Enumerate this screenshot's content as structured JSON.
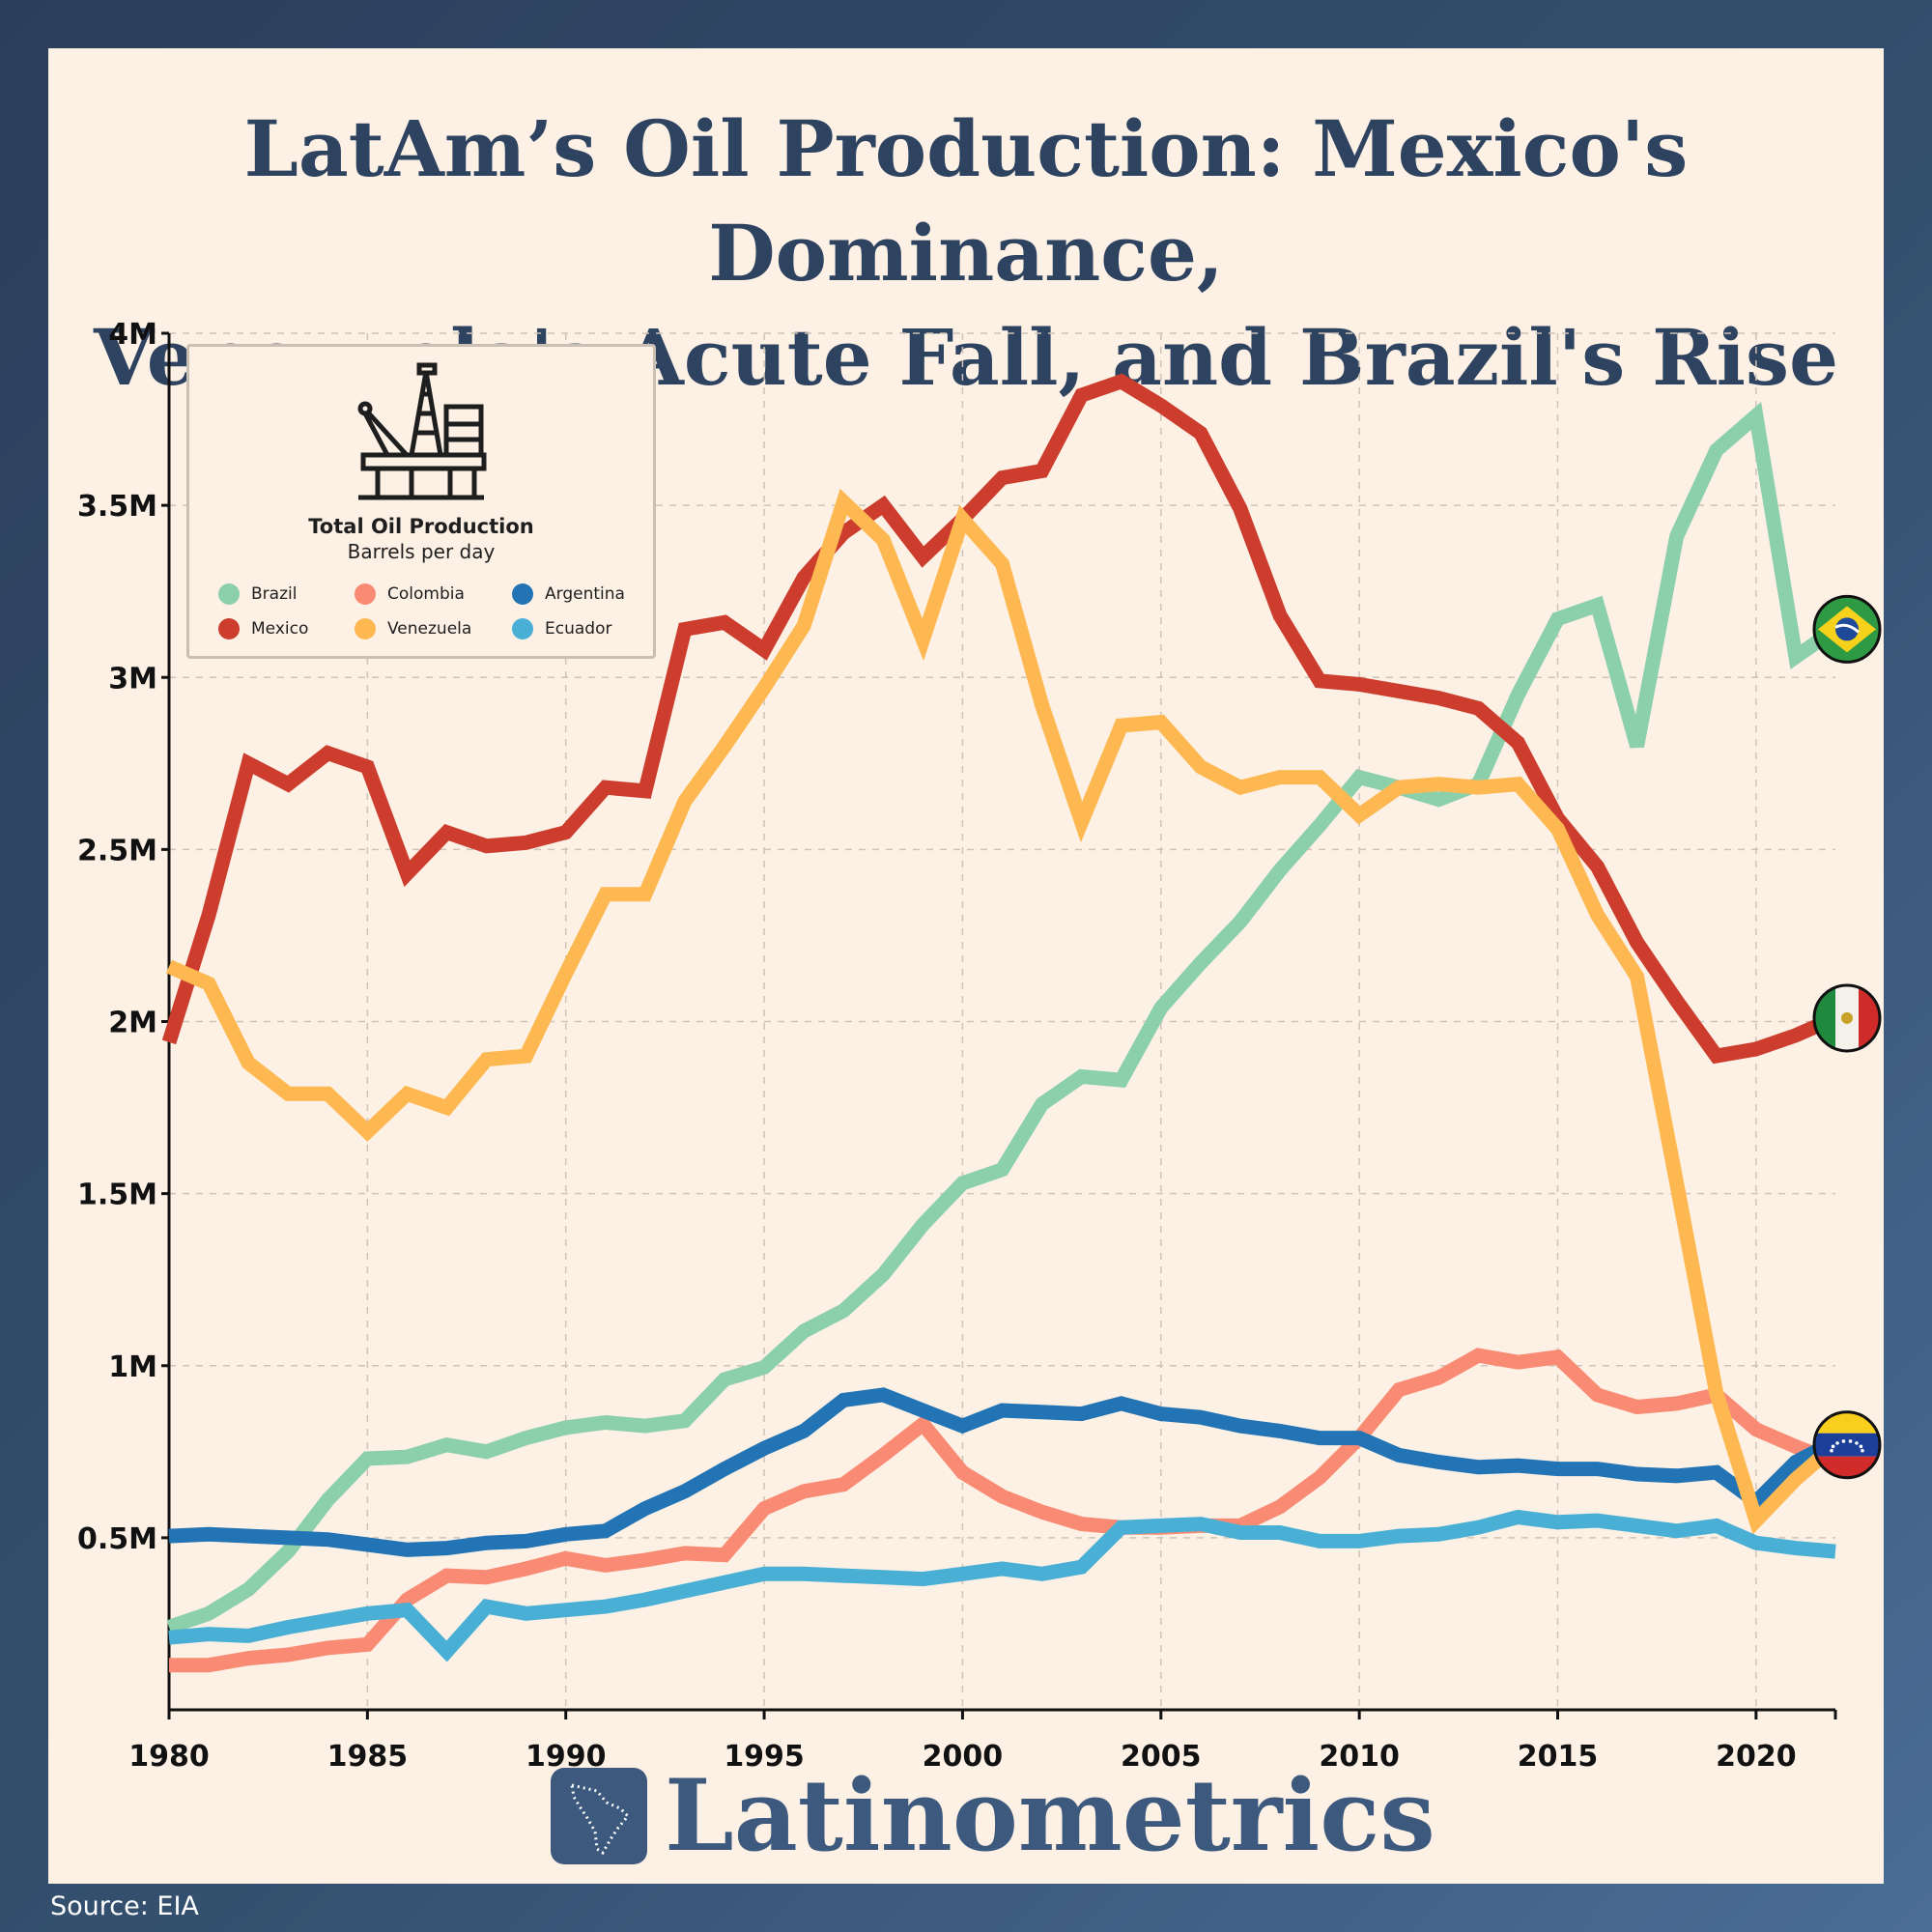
{
  "title_line1": "LatAm’s Oil Production: Mexico's Dominance,",
  "title_line2": "Venezuela's Acute Fall, and Brazil's Rise",
  "legend": {
    "icon": "offshore-oil-rig-icon",
    "title": "Total Oil Production",
    "subtitle": "Barrels per day"
  },
  "brand": "Latinometrics",
  "brand_icon": "latin-america-map-icon",
  "source": "Source: EIA",
  "end_markers": [
    {
      "series": "Brazil",
      "icon": "brazil-flag-icon"
    },
    {
      "series": "Mexico",
      "icon": "mexico-flag-icon"
    },
    {
      "series": "Venezuela",
      "icon": "venezuela-flag-icon"
    }
  ],
  "chart_data": {
    "type": "line",
    "title": "LatAm’s Oil Production: Mexico's Dominance, Venezuela's Acute Fall, and Brazil's Rise",
    "xlabel": "",
    "ylabel": "",
    "xlim": [
      1980,
      2022
    ],
    "ylim": [
      0,
      4000000
    ],
    "x_ticks": [
      1980,
      1985,
      1990,
      1995,
      2000,
      2005,
      2010,
      2015,
      2020
    ],
    "x_tick_labels": [
      "1980",
      "1985",
      "1990",
      "1995",
      "2000",
      "2005",
      "2010",
      "2015",
      "2020"
    ],
    "y_ticks": [
      500000,
      1000000,
      1500000,
      2000000,
      2500000,
      3000000,
      3500000,
      4000000
    ],
    "y_tick_labels": [
      "0.5M",
      "1M",
      "1.5M",
      "2M",
      "2.5M",
      "3M",
      "3.5M",
      "4M"
    ],
    "grid": true,
    "legend_position": "top-left",
    "x": [
      1980,
      1981,
      1982,
      1983,
      1984,
      1985,
      1986,
      1987,
      1988,
      1989,
      1990,
      1991,
      1992,
      1993,
      1994,
      1995,
      1996,
      1997,
      1998,
      1999,
      2000,
      2001,
      2002,
      2003,
      2004,
      2005,
      2006,
      2007,
      2008,
      2009,
      2010,
      2011,
      2012,
      2013,
      2014,
      2015,
      2016,
      2017,
      2018,
      2019,
      2020,
      2021,
      2022
    ],
    "series": [
      {
        "name": "Brazil",
        "color": "#8ccfab",
        "values": [
          240000,
          280000,
          350000,
          460000,
          610000,
          730000,
          735000,
          770000,
          750000,
          790000,
          820000,
          835000,
          825000,
          840000,
          960000,
          995000,
          1100000,
          1160000,
          1265000,
          1410000,
          1530000,
          1570000,
          1760000,
          1840000,
          1830000,
          2040000,
          2170000,
          2290000,
          2440000,
          2570000,
          2710000,
          2680000,
          2645000,
          2690000,
          2950000,
          3170000,
          3210000,
          2800000,
          3410000,
          3660000,
          3760000,
          3060000,
          3140000
        ]
      },
      {
        "name": "Colombia",
        "color": "#f98b74",
        "values": [
          130000,
          130000,
          150000,
          160000,
          180000,
          190000,
          320000,
          390000,
          385000,
          410000,
          440000,
          420000,
          435000,
          455000,
          450000,
          585000,
          635000,
          655000,
          740000,
          830000,
          690000,
          620000,
          575000,
          540000,
          530000,
          530000,
          535000,
          535000,
          590000,
          675000,
          790000,
          930000,
          965000,
          1030000,
          1010000,
          1025000,
          915000,
          880000,
          890000,
          915000,
          815000,
          765000,
          720000
        ]
      },
      {
        "name": "Argentina",
        "color": "#2274b4",
        "values": [
          505000,
          510000,
          505000,
          500000,
          495000,
          480000,
          465000,
          470000,
          485000,
          490000,
          510000,
          520000,
          585000,
          635000,
          700000,
          760000,
          810000,
          900000,
          915000,
          870000,
          825000,
          870000,
          865000,
          860000,
          890000,
          860000,
          850000,
          825000,
          810000,
          790000,
          790000,
          740000,
          720000,
          705000,
          710000,
          700000,
          700000,
          685000,
          680000,
          690000,
          605000,
          720000,
          780000
        ]
      },
      {
        "name": "Mexico",
        "color": "#cc3d2e",
        "values": [
          1940000,
          2310000,
          2750000,
          2690000,
          2780000,
          2740000,
          2430000,
          2550000,
          2510000,
          2520000,
          2550000,
          2680000,
          2670000,
          3140000,
          3160000,
          3080000,
          3290000,
          3420000,
          3500000,
          3350000,
          3460000,
          3580000,
          3600000,
          3820000,
          3860000,
          3790000,
          3710000,
          3490000,
          3180000,
          2990000,
          2980000,
          2960000,
          2940000,
          2910000,
          2810000,
          2590000,
          2450000,
          2230000,
          2060000,
          1900000,
          1920000,
          1960000,
          2010000
        ]
      },
      {
        "name": "Venezuela",
        "color": "#fdb851",
        "values": [
          2160000,
          2110000,
          1880000,
          1790000,
          1790000,
          1680000,
          1790000,
          1750000,
          1890000,
          1900000,
          2140000,
          2370000,
          2370000,
          2640000,
          2800000,
          2970000,
          3150000,
          3510000,
          3400000,
          3110000,
          3460000,
          3330000,
          2920000,
          2580000,
          2860000,
          2870000,
          2740000,
          2680000,
          2710000,
          2710000,
          2600000,
          2680000,
          2690000,
          2680000,
          2690000,
          2560000,
          2310000,
          2130000,
          1530000,
          920000,
          550000,
          670000,
          770000
        ]
      },
      {
        "name": "Ecuador",
        "color": "#4aafd5",
        "values": [
          210000,
          220000,
          215000,
          240000,
          260000,
          280000,
          290000,
          170000,
          300000,
          280000,
          290000,
          300000,
          320000,
          345000,
          370000,
          395000,
          395000,
          390000,
          385000,
          380000,
          395000,
          410000,
          395000,
          415000,
          530000,
          535000,
          540000,
          515000,
          515000,
          490000,
          490000,
          505000,
          510000,
          530000,
          560000,
          545000,
          550000,
          535000,
          520000,
          535000,
          485000,
          470000,
          460000
        ]
      }
    ]
  }
}
